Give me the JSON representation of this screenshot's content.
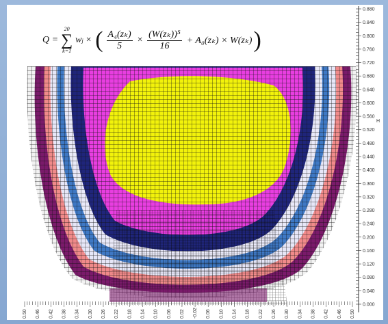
{
  "formula": {
    "lhs": "Q =",
    "sum_top": "20",
    "sum_bottom": "k=1",
    "weight": "w",
    "weight_sub": "j",
    "times": "×",
    "frac1_num": "A₄(zₖ)",
    "frac1_den": "5",
    "frac2_num": "(W(zₖ))⁵",
    "frac2_den": "16",
    "tail": "+ A₀(zₖ) × W(zₖ)"
  },
  "axes": {
    "y_label": "H",
    "y_ticks": [
      "0.880",
      "0.840",
      "0.800",
      "0.760",
      "0.720",
      "0.680",
      "0.640",
      "0.600",
      "0.560",
      "0.520",
      "0.480",
      "0.440",
      "0.400",
      "0.360",
      "0.320",
      "0.280",
      "0.240",
      "0.200",
      "0.160",
      "0.120",
      "0.080",
      "0.040",
      "0.000"
    ],
    "x_ticks": [
      "0.50",
      "0.46",
      "0.42",
      "0.38",
      "0.34",
      "0.30",
      "0.26",
      "0.22",
      "0.18",
      "0.14",
      "0.10",
      "0.06",
      "0.02",
      "-0.02",
      "0.06",
      "0.10",
      "0.14",
      "0.18",
      "0.22",
      "0.26",
      "0.30",
      "0.34",
      "0.38",
      "0.42",
      "0.46",
      "0.50"
    ]
  },
  "bands": [
    {
      "name": "outer",
      "color": "#f2f2f2"
    },
    {
      "name": "dark-purple",
      "color": "#7a1a6a"
    },
    {
      "name": "light-red",
      "color": "#f08a8a"
    },
    {
      "name": "pale-lavender",
      "color": "#e6e6f7"
    },
    {
      "name": "blue",
      "color": "#3e78c4"
    },
    {
      "name": "pale-lavender-2",
      "color": "#e9e9f8"
    },
    {
      "name": "navy",
      "color": "#1f257a"
    },
    {
      "name": "magenta",
      "color": "#e83ee0"
    },
    {
      "name": "yellow",
      "color": "#f2f20b"
    }
  ]
}
